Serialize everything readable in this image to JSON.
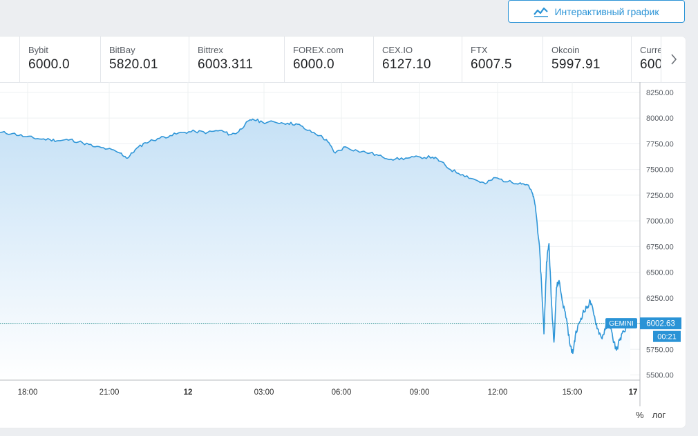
{
  "header": {
    "interactive_chart_label": "Интерактивный график",
    "interactive_chart_icon": "line-chart-icon"
  },
  "tickers": [
    {
      "name": "",
      "price": ""
    },
    {
      "name": "Bybit",
      "price": "6000.0"
    },
    {
      "name": "BitBay",
      "price": "5820.01"
    },
    {
      "name": "Bittrex",
      "price": "6003.311"
    },
    {
      "name": "FOREX.com",
      "price": "6000.0"
    },
    {
      "name": "CEX.IO",
      "price": "6127.10"
    },
    {
      "name": "FTX",
      "price": "6007.5"
    },
    {
      "name": "Okcoin",
      "price": "5997.91"
    },
    {
      "name": "Curre",
      "price": "600"
    }
  ],
  "ticker_nav_icon": "chevron-right-icon",
  "bottom_controls": {
    "percent_label": "%",
    "log_label": "лог"
  },
  "colors": {
    "accent": "#2a93d6",
    "line": "#2f96d8",
    "area_top": "#c6e1f6",
    "area_bottom": "#ffffff",
    "grid": "#eef0f2"
  },
  "chart_data": {
    "type": "area",
    "title": "",
    "xlabel": "",
    "ylabel": "",
    "x_tick_labels": [
      "18:00",
      "21:00",
      "12",
      "03:00",
      "06:00",
      "09:00",
      "12:00",
      "15:00",
      "17"
    ],
    "y_ticks": [
      5500,
      5750,
      6000,
      6250,
      6500,
      6750,
      7000,
      7250,
      7500,
      7750,
      8000,
      8250
    ],
    "y_tick_labels": [
      "5500.00",
      "5750.00",
      "6000.00",
      "6250.00",
      "6500.00",
      "6750.00",
      "7000.00",
      "7250.00",
      "7500.00",
      "7750.00",
      "8000.00",
      "8250.00"
    ],
    "ylim": [
      5450,
      8350
    ],
    "time_unit": "hours",
    "x_range": [
      16.2,
      41.4
    ],
    "grid": true,
    "last_price": {
      "exchange": "GEMINI",
      "value": 6002.63,
      "value_label": "6002.63",
      "countdown": "00:21"
    },
    "series": [
      {
        "points": [
          [
            16.2,
            7860
          ],
          [
            16.7,
            7850
          ],
          [
            17.2,
            7820
          ],
          [
            17.7,
            7800
          ],
          [
            18.2,
            7790
          ],
          [
            18.6,
            7780
          ],
          [
            19.0,
            7790
          ],
          [
            19.5,
            7760
          ],
          [
            20.0,
            7720
          ],
          [
            20.5,
            7700
          ],
          [
            21.0,
            7660
          ],
          [
            21.3,
            7610
          ],
          [
            21.6,
            7690
          ],
          [
            22.0,
            7760
          ],
          [
            22.5,
            7800
          ],
          [
            23.0,
            7830
          ],
          [
            23.5,
            7860
          ],
          [
            24.0,
            7870
          ],
          [
            24.5,
            7860
          ],
          [
            25.0,
            7880
          ],
          [
            25.4,
            7840
          ],
          [
            25.7,
            7860
          ],
          [
            26.0,
            7940
          ],
          [
            26.3,
            7990
          ],
          [
            26.7,
            7960
          ],
          [
            27.2,
            7960
          ],
          [
            27.7,
            7950
          ],
          [
            28.1,
            7940
          ],
          [
            28.5,
            7880
          ],
          [
            29.0,
            7830
          ],
          [
            29.3,
            7770
          ],
          [
            29.6,
            7660
          ],
          [
            30.0,
            7720
          ],
          [
            30.5,
            7680
          ],
          [
            31.0,
            7660
          ],
          [
            31.5,
            7620
          ],
          [
            32.0,
            7600
          ],
          [
            32.5,
            7610
          ],
          [
            33.0,
            7620
          ],
          [
            33.5,
            7620
          ],
          [
            33.8,
            7580
          ],
          [
            34.2,
            7500
          ],
          [
            34.7,
            7450
          ],
          [
            35.2,
            7400
          ],
          [
            35.6,
            7360
          ],
          [
            36.0,
            7420
          ],
          [
            36.5,
            7380
          ],
          [
            37.0,
            7370
          ],
          [
            37.3,
            7350
          ],
          [
            37.5,
            7260
          ],
          [
            37.6,
            7150
          ],
          [
            37.75,
            6800
          ],
          [
            37.85,
            6400
          ],
          [
            37.95,
            5900
          ],
          [
            38.05,
            6600
          ],
          [
            38.15,
            6780
          ],
          [
            38.25,
            6200
          ],
          [
            38.35,
            5820
          ],
          [
            38.45,
            6350
          ],
          [
            38.55,
            6420
          ],
          [
            38.7,
            6200
          ],
          [
            38.85,
            6050
          ],
          [
            39.0,
            5780
          ],
          [
            39.1,
            5710
          ],
          [
            39.2,
            5880
          ],
          [
            39.35,
            6000
          ],
          [
            39.5,
            6100
          ],
          [
            39.65,
            6150
          ],
          [
            39.8,
            6220
          ],
          [
            39.95,
            6080
          ],
          [
            40.1,
            5950
          ],
          [
            40.25,
            5860
          ],
          [
            40.4,
            5940
          ],
          [
            40.55,
            6020
          ],
          [
            40.7,
            5860
          ],
          [
            40.85,
            5740
          ],
          [
            41.0,
            5860
          ],
          [
            41.15,
            5920
          ],
          [
            41.4,
            6002.63
          ]
        ]
      }
    ]
  }
}
